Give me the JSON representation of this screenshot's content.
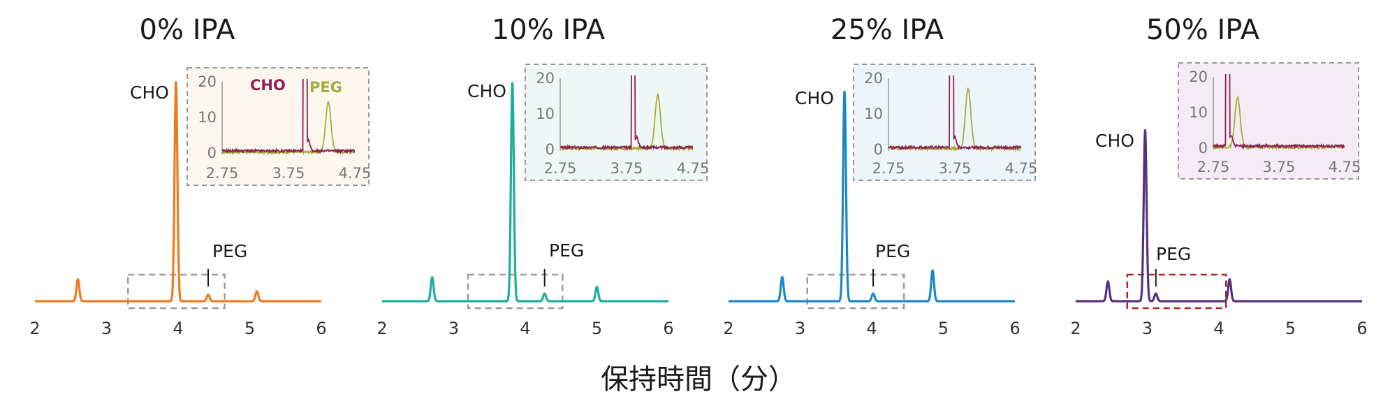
{
  "chart_data": {
    "type": "line",
    "xlabel": "保持時間（分）",
    "x_ticks": [
      2,
      3,
      4,
      5,
      6
    ],
    "xlim": [
      2,
      6
    ],
    "inset_x_ticks": [
      "2.75",
      "3.75",
      "4.75"
    ],
    "inset_xlim": [
      2.75,
      4.75
    ],
    "inset_y_ticks": [
      "0",
      "10",
      "20"
    ],
    "inset_ylim": [
      0,
      20
    ],
    "inset_series_names": [
      "CHO",
      "PEG"
    ],
    "colors": {
      "CHO_inset": "#8b2252",
      "PEG_inset": "#a7ad3a",
      "zoom_box_gray": "#9a9a9a",
      "zoom_box_red": "#b22222"
    },
    "panels": [
      {
        "title": "0% IPA",
        "color": "#ee7b22",
        "inset_bg": "#fdf6ee",
        "peaks": [
          {
            "rt": 2.6,
            "height": 0.1
          },
          {
            "rt": 3.97,
            "height": 1.0,
            "label": "CHO"
          },
          {
            "rt": 4.42,
            "height": 0.03,
            "label": "PEG"
          },
          {
            "rt": 5.1,
            "height": 0.045
          }
        ],
        "zoom_range": [
          3.3,
          4.65
        ],
        "zoom_box_color": "gray",
        "inset_cho_rt": 4.0,
        "inset_peg_rt": 4.35,
        "inset_peg_height": 14,
        "show_inset_legend": true
      },
      {
        "title": "10% IPA",
        "color": "#1fae98",
        "inset_bg": "#eef7f5",
        "peaks": [
          {
            "rt": 2.7,
            "height": 0.11
          },
          {
            "rt": 3.82,
            "height": 1.0,
            "label": "CHO"
          },
          {
            "rt": 4.27,
            "height": 0.035,
            "label": "PEG"
          },
          {
            "rt": 5.0,
            "height": 0.065
          }
        ],
        "zoom_range": [
          3.2,
          4.52
        ],
        "zoom_box_color": "gray",
        "inset_cho_rt": 3.85,
        "inset_peg_rt": 4.22,
        "inset_peg_height": 15,
        "show_inset_legend": false
      },
      {
        "title": "25% IPA",
        "color": "#1a88c8",
        "inset_bg": "#edf5fb",
        "peaks": [
          {
            "rt": 2.75,
            "height": 0.11
          },
          {
            "rt": 3.62,
            "height": 0.96,
            "label": "CHO"
          },
          {
            "rt": 4.02,
            "height": 0.035,
            "label": "PEG"
          },
          {
            "rt": 4.85,
            "height": 0.14
          }
        ],
        "zoom_range": [
          3.1,
          4.45
        ],
        "zoom_box_color": "gray",
        "inset_cho_rt": 3.7,
        "inset_peg_rt": 3.95,
        "inset_peg_height": 17,
        "show_inset_legend": false
      },
      {
        "title": "50% IPA",
        "color": "#57307e",
        "inset_bg": "#f3ecf4",
        "peaks": [
          {
            "rt": 2.45,
            "height": 0.09
          },
          {
            "rt": 2.97,
            "height": 0.78,
            "label": "CHO"
          },
          {
            "rt": 3.12,
            "height": 0.035,
            "label": "PEG"
          },
          {
            "rt": 4.15,
            "height": 0.1
          }
        ],
        "zoom_range": [
          2.72,
          4.1
        ],
        "zoom_box_color": "red",
        "inset_cho_rt": 2.97,
        "inset_peg_rt": 3.12,
        "inset_peg_height": 14,
        "show_inset_legend": false
      }
    ]
  }
}
